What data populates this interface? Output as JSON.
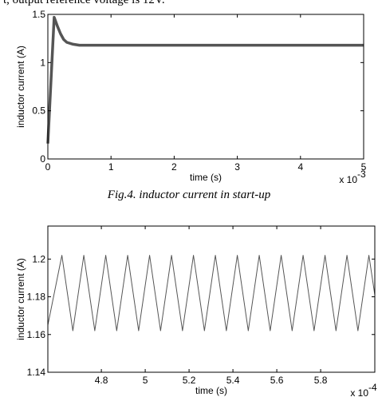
{
  "text_above": "t, output reference voltage is 12V.",
  "caption": "Fig.4. inductor current in start-up",
  "chart_data": [
    {
      "type": "line",
      "xlabel": "time (s)",
      "ylabel": "inductor current (A)",
      "x_multiplier": {
        "base": "x 10",
        "exponent": "-3"
      },
      "xlim": [
        0,
        5
      ],
      "ylim": [
        0,
        1.5
      ],
      "xticks": [
        0,
        1,
        2,
        3,
        4,
        5
      ],
      "yticks": [
        0,
        0.5,
        1,
        1.5
      ],
      "x": [
        0,
        0.1,
        0.15,
        0.2,
        0.25,
        0.3,
        0.4,
        0.5,
        1,
        2,
        3,
        4,
        5
      ],
      "series": [
        {
          "color": "#555555",
          "values": [
            0.16,
            1.47,
            1.38,
            1.3,
            1.24,
            1.21,
            1.19,
            1.18,
            1.18,
            1.18,
            1.18,
            1.18,
            1.18
          ]
        }
      ]
    },
    {
      "type": "line",
      "xlabel": "time (s)",
      "ylabel": "inductor current (A)",
      "x_multiplier": {
        "base": "x 10",
        "exponent": "-4"
      },
      "xlim": [
        4.556,
        6.047
      ],
      "ylim": [
        1.14,
        1.2175
      ],
      "xticks": [
        4.8,
        5,
        5.2,
        5.4,
        5.6,
        5.8
      ],
      "yticks": [
        1.14,
        1.16,
        1.18,
        1.2
      ],
      "x": [
        4.556,
        4.62,
        4.67,
        4.72,
        4.77,
        4.82,
        4.87,
        4.92,
        4.97,
        5.02,
        5.07,
        5.12,
        5.17,
        5.22,
        5.27,
        5.32,
        5.37,
        5.42,
        5.47,
        5.52,
        5.57,
        5.62,
        5.67,
        5.72,
        5.77,
        5.82,
        5.87,
        5.92,
        5.97,
        6.02,
        6.047
      ],
      "series": [
        {
          "color": "#555555",
          "values": [
            1.165,
            1.202,
            1.162,
            1.202,
            1.162,
            1.202,
            1.162,
            1.202,
            1.162,
            1.202,
            1.162,
            1.202,
            1.162,
            1.202,
            1.162,
            1.202,
            1.162,
            1.202,
            1.162,
            1.202,
            1.162,
            1.202,
            1.162,
            1.202,
            1.162,
            1.202,
            1.162,
            1.202,
            1.162,
            1.202,
            1.181
          ]
        }
      ]
    }
  ]
}
